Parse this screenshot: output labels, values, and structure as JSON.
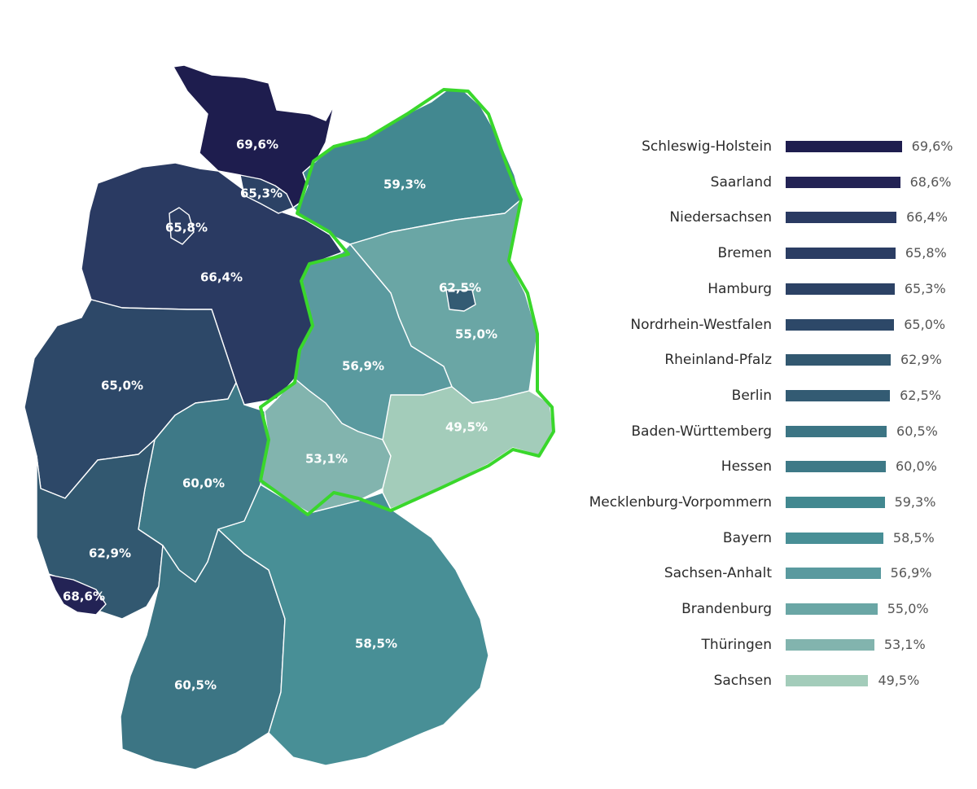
{
  "chart_data": {
    "type": "choropleth-bar",
    "title": "",
    "unit": "%",
    "highlight": "Ostdeutschland (eingekreist)",
    "highlight_color": "#39d72b",
    "bar_axis_min": 0,
    "bar_axis_max": 100,
    "states": [
      {
        "name": "Schleswig-Holstein",
        "value": 69.6,
        "label": "69,6%",
        "color": "#1e1d4e"
      },
      {
        "name": "Saarland",
        "value": 68.6,
        "label": "68,6%",
        "color": "#232355"
      },
      {
        "name": "Niedersachsen",
        "value": 66.4,
        "label": "66,4%",
        "color": "#2a3a62"
      },
      {
        "name": "Bremen",
        "value": 65.8,
        "label": "65,8%",
        "color": "#2b3d63"
      },
      {
        "name": "Hamburg",
        "value": 65.3,
        "label": "65,3%",
        "color": "#2c4265"
      },
      {
        "name": "Nordrhein-Westfalen",
        "value": 65.0,
        "label": "65,0%",
        "color": "#2d4868"
      },
      {
        "name": "Rheinland-Pfalz",
        "value": 62.9,
        "label": "62,9%",
        "color": "#325870"
      },
      {
        "name": "Berlin",
        "value": 62.5,
        "label": "62,5%",
        "color": "#335b73"
      },
      {
        "name": "Baden-Württemberg",
        "value": 60.5,
        "label": "60,5%",
        "color": "#3c7584"
      },
      {
        "name": "Hessen",
        "value": 60.0,
        "label": "60,0%",
        "color": "#3e7987"
      },
      {
        "name": "Mecklenburg-Vorpommern",
        "value": 59.3,
        "label": "59,3%",
        "color": "#428890"
      },
      {
        "name": "Bayern",
        "value": 58.5,
        "label": "58,5%",
        "color": "#488f96"
      },
      {
        "name": "Sachsen-Anhalt",
        "value": 56.9,
        "label": "56,9%",
        "color": "#5a9a9f"
      },
      {
        "name": "Brandenburg",
        "value": 55.0,
        "label": "55,0%",
        "color": "#6aa6a5"
      },
      {
        "name": "Thüringen",
        "value": 53.1,
        "label": "53,1%",
        "color": "#82b4ae"
      },
      {
        "name": "Sachsen",
        "value": 49.5,
        "label": "49,5%",
        "color": "#a3ccba"
      }
    ]
  }
}
